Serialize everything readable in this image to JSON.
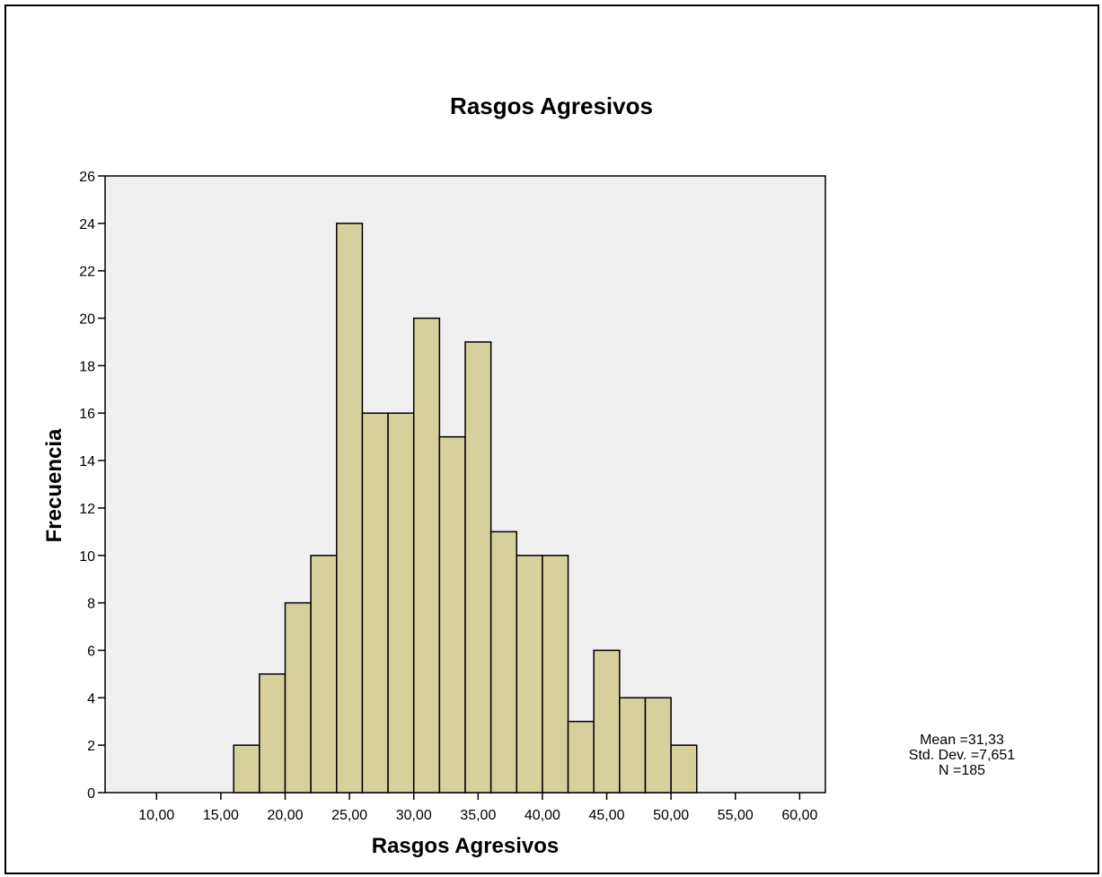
{
  "chart_data": {
    "type": "bar",
    "title": "Rasgos Agresivos",
    "xlabel": "Rasgos Agresivos",
    "ylabel": "Frecuencia",
    "bin_width": 2,
    "bin_starts": [
      16,
      18,
      20,
      22,
      24,
      26,
      28,
      30,
      32,
      34,
      36,
      38,
      40,
      42,
      44,
      46,
      48,
      50
    ],
    "values": [
      2,
      5,
      8,
      10,
      24,
      16,
      16,
      20,
      15,
      19,
      11,
      10,
      10,
      3,
      6,
      4,
      4,
      2
    ],
    "xlim": [
      6,
      62
    ],
    "ylim": [
      0,
      26
    ],
    "x_ticks": [
      10,
      15,
      20,
      25,
      30,
      35,
      40,
      45,
      50,
      55,
      60
    ],
    "x_tick_labels": [
      "10,00",
      "15,00",
      "20,00",
      "25,00",
      "30,00",
      "35,00",
      "40,00",
      "45,00",
      "50,00",
      "55,00",
      "60,00"
    ],
    "y_ticks": [
      0,
      2,
      4,
      6,
      8,
      10,
      12,
      14,
      16,
      18,
      20,
      22,
      24,
      26
    ],
    "y_tick_labels": [
      "0",
      "2",
      "4",
      "6",
      "8",
      "10",
      "12",
      "14",
      "16",
      "18",
      "20",
      "22",
      "24",
      "26"
    ],
    "grid": false,
    "stats": [
      "Mean =31,33",
      "Std. Dev. =7,651",
      "N =185"
    ]
  },
  "colors": {
    "bar_fill": "#d5d09c",
    "plot_background": "#f0f0f0",
    "bar_stroke": "#000000"
  }
}
